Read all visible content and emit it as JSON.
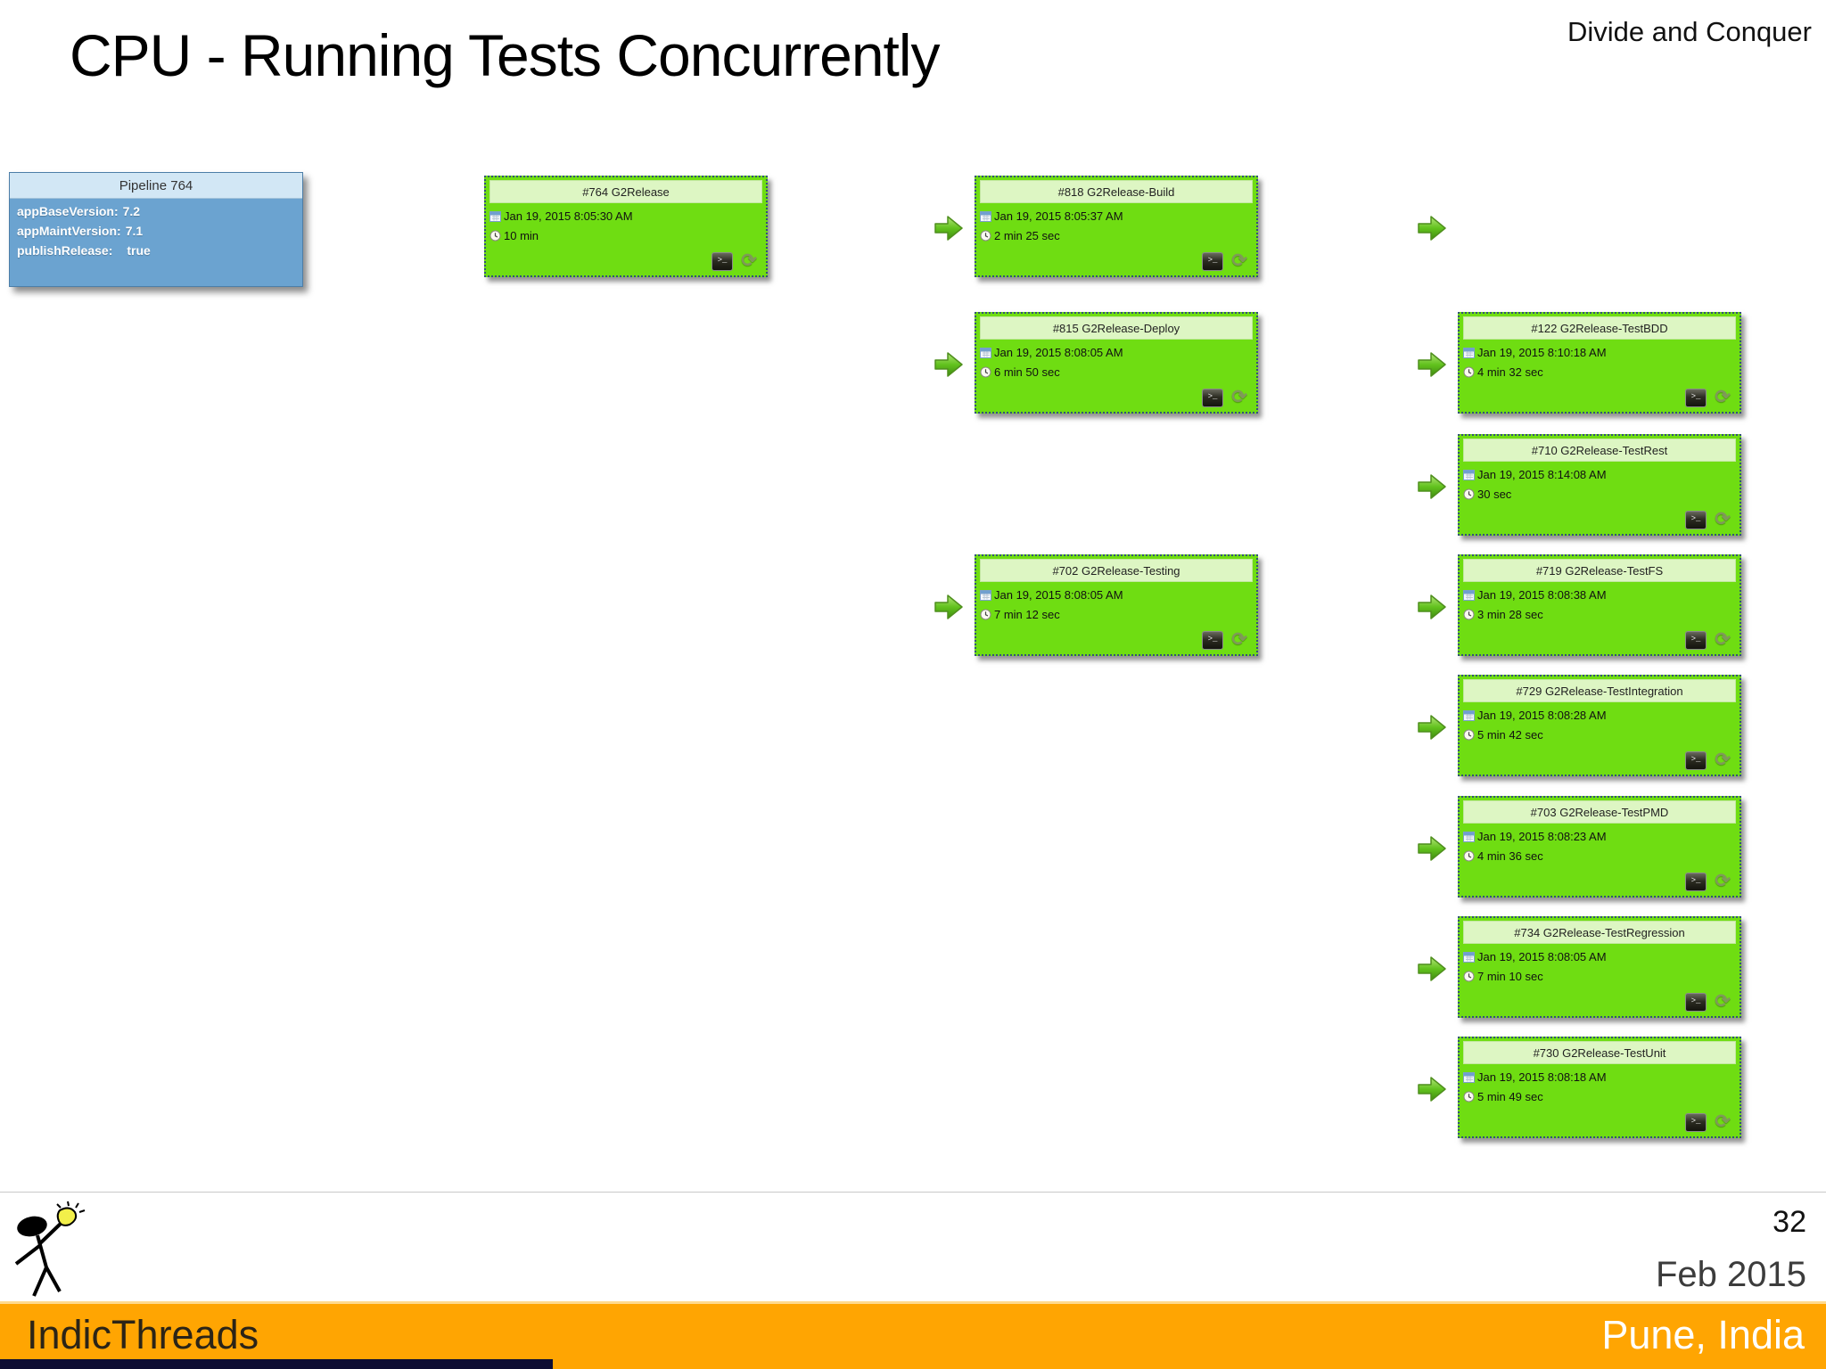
{
  "slide": {
    "title": "CPU - Running Tests Concurrently",
    "corner_note": "Divide and Conquer",
    "page_number": "32",
    "footer_date": "Feb 2015",
    "footer_location": "Pune, India",
    "footer_brand": "IndicThreads"
  },
  "pipeline": {
    "param_box": {
      "title": "Pipeline 764",
      "params": [
        {
          "label": "appBaseVersion:",
          "value": "7.2"
        },
        {
          "label": "appMaintVersion:",
          "value": "7.1"
        },
        {
          "label": "publishRelease:",
          "value": "true"
        }
      ]
    },
    "jobs": [
      {
        "name": "#764 G2Release",
        "started": "Jan 19, 2015 8:05:30 AM",
        "duration": "10 min",
        "col": 1,
        "row": 0,
        "incoming_arrow": false
      },
      {
        "name": "#818 G2Release-Build",
        "started": "Jan 19, 2015 8:05:37 AM",
        "duration": "2 min 25 sec",
        "col": 2,
        "row": 0,
        "incoming_arrow": true
      },
      {
        "name": "#815 G2Release-Deploy",
        "started": "Jan 19, 2015 8:08:05 AM",
        "duration": "6 min 50 sec",
        "col": 2,
        "row": 1,
        "incoming_arrow": true
      },
      {
        "name": "#702 G2Release-Testing",
        "started": "Jan 19, 2015 8:08:05 AM",
        "duration": "7 min 12 sec",
        "col": 2,
        "row": 3,
        "incoming_arrow": true
      },
      {
        "name": "#122 G2Release-TestBDD",
        "started": "Jan 19, 2015 8:10:18 AM",
        "duration": "4 min 32 sec",
        "col": 3,
        "row": 1,
        "incoming_arrow": true
      },
      {
        "name": "#710 G2Release-TestRest",
        "started": "Jan 19, 2015 8:14:08 AM",
        "duration": "30 sec",
        "col": 3,
        "row": 2,
        "incoming_arrow": true
      },
      {
        "name": "#719 G2Release-TestFS",
        "started": "Jan 19, 2015 8:08:38 AM",
        "duration": "3 min 28 sec",
        "col": 3,
        "row": 3,
        "incoming_arrow": true
      },
      {
        "name": "#729 G2Release-TestIntegration",
        "started": "Jan 19, 2015 8:08:28 AM",
        "duration": "5 min 42 sec",
        "col": 3,
        "row": 4,
        "incoming_arrow": true
      },
      {
        "name": "#703 G2Release-TestPMD",
        "started": "Jan 19, 2015 8:08:23 AM",
        "duration": "4 min 36 sec",
        "col": 3,
        "row": 5,
        "incoming_arrow": true
      },
      {
        "name": "#734 G2Release-TestRegression",
        "started": "Jan 19, 2015 8:08:05 AM",
        "duration": "7 min 10 sec",
        "col": 3,
        "row": 6,
        "incoming_arrow": true
      },
      {
        "name": "#730 G2Release-TestUnit",
        "started": "Jan 19, 2015 8:08:18 AM",
        "duration": "5 min 49 sec",
        "col": 3,
        "row": 7,
        "incoming_arrow": true
      }
    ],
    "extra_arrows": [
      {
        "col": 3,
        "row": 0
      }
    ]
  },
  "icons": {
    "console_glyph": ">_",
    "rerun_glyph": "⟳"
  },
  "colors": {
    "job_green": "#6fdd12",
    "job_header_green": "#ddf6c3",
    "param_blue": "#6ba3d0",
    "param_header_blue": "#d2e7f5",
    "arrow_green": "#62c21e",
    "footer_orange": "#ffa502",
    "bottom_strip_navy": "#0d0d33"
  }
}
